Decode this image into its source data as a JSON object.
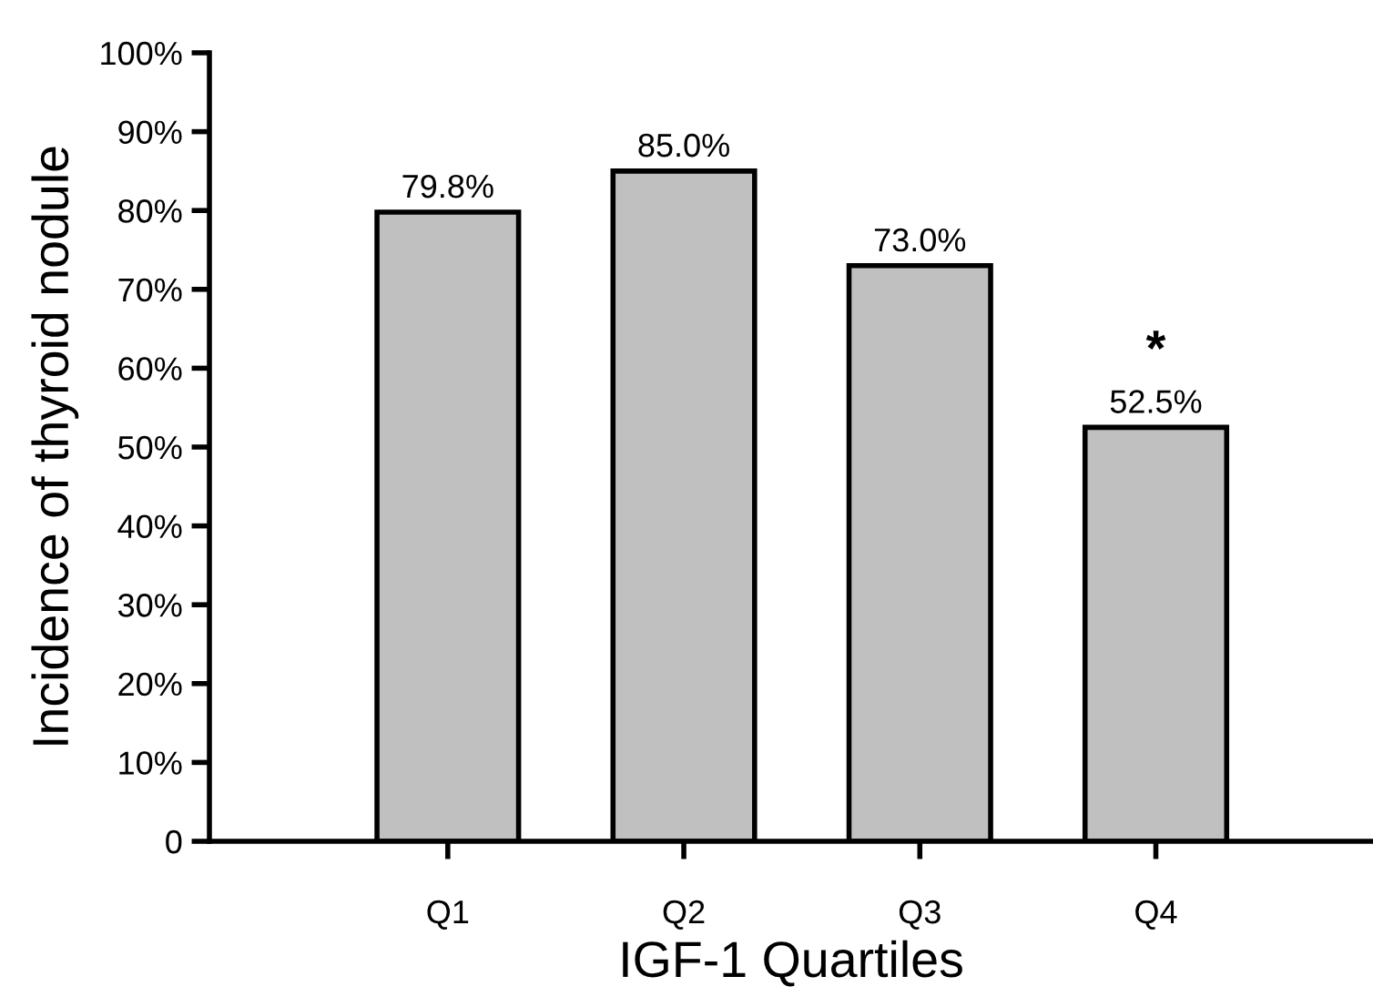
{
  "chart_data": {
    "type": "bar",
    "categories": [
      "Q1",
      "Q2",
      "Q3",
      "Q4"
    ],
    "values": [
      79.8,
      85.0,
      73.0,
      52.5
    ],
    "value_labels": [
      "79.8%",
      "85.0%",
      "73.0%",
      "52.5%"
    ],
    "color": "#c0c0c0",
    "xlabel": "IGF-1 Quartiles",
    "ylabel": "Incidence of thyroid nodule",
    "ylim": [
      0,
      100
    ],
    "yticks": [
      0,
      {
        "value": 10,
        "label": "10%"
      },
      {
        "value": 20,
        "label": "20%"
      },
      {
        "value": 30,
        "label": "30%"
      },
      {
        "value": 40,
        "label": "40%"
      },
      {
        "value": 50,
        "label": "50%"
      },
      {
        "value": 60,
        "label": "60%"
      },
      {
        "value": 70,
        "label": "70%"
      },
      {
        "value": 80,
        "label": "80%"
      },
      {
        "value": 90,
        "label": "90%"
      },
      {
        "value": 100,
        "label": "100%"
      }
    ],
    "annotations": [
      "*"
    ],
    "grid": false,
    "legend": false
  }
}
